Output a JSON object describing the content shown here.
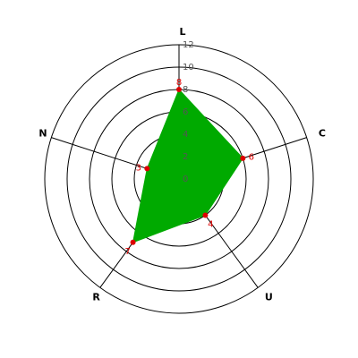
{
  "chart_data": {
    "type": "radar",
    "categories": [
      "L",
      "C",
      "U",
      "R",
      "N"
    ],
    "values": [
      8,
      6,
      4,
      7,
      3
    ],
    "rlim": [
      0,
      12
    ],
    "rticks": [
      0,
      2,
      4,
      6,
      8,
      10,
      12
    ],
    "color": "#00aa00",
    "point_color": "#dd0000",
    "grid": true
  }
}
